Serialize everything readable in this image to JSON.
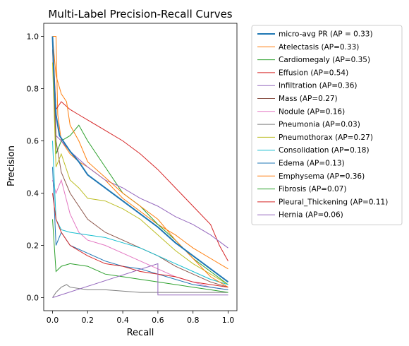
{
  "chart_data": {
    "type": "line",
    "title": "Multi-Label Precision-Recall Curves",
    "xlabel": "Recall",
    "ylabel": "Precision",
    "xlim": [
      -0.05,
      1.05
    ],
    "ylim": [
      -0.05,
      1.05
    ],
    "xticks": [
      0.0,
      0.2,
      0.4,
      0.6,
      0.8,
      1.0
    ],
    "xtick_labels": [
      "0.0",
      "0.2",
      "0.4",
      "0.6",
      "0.8",
      "1.0"
    ],
    "yticks": [
      0.0,
      0.2,
      0.4,
      0.6,
      0.8,
      1.0
    ],
    "ytick_labels": [
      "0.0",
      "0.2",
      "0.4",
      "0.6",
      "0.8",
      "1.0"
    ],
    "grid": false,
    "legend_placement": "outside-right",
    "series": [
      {
        "name": "micro-avg PR (AP = 0.33)",
        "color": "#1f77b4",
        "bold": true,
        "x": [
          0.0,
          0.01,
          0.02,
          0.04,
          0.06,
          0.1,
          0.15,
          0.2,
          0.3,
          0.4,
          0.5,
          0.6,
          0.7,
          0.8,
          0.9,
          1.0
        ],
        "y": [
          1.0,
          0.82,
          0.7,
          0.62,
          0.6,
          0.56,
          0.52,
          0.47,
          0.42,
          0.37,
          0.32,
          0.27,
          0.21,
          0.16,
          0.11,
          0.06
        ]
      },
      {
        "name": "Atelectasis (AP=0.33)",
        "color": "#ff7f0e",
        "x": [
          0.0,
          0.02,
          0.03,
          0.05,
          0.1,
          0.15,
          0.2,
          0.3,
          0.4,
          0.5,
          0.6,
          0.7,
          0.8,
          0.9,
          1.0
        ],
        "y": [
          1.0,
          1.0,
          0.7,
          0.6,
          0.55,
          0.52,
          0.5,
          0.45,
          0.38,
          0.33,
          0.28,
          0.24,
          0.19,
          0.15,
          0.11
        ]
      },
      {
        "name": "Cardiomegaly (AP=0.35)",
        "color": "#2ca02c",
        "x": [
          0.0,
          0.02,
          0.05,
          0.1,
          0.15,
          0.2,
          0.25,
          0.3,
          0.4,
          0.5,
          0.6,
          0.7,
          0.8,
          0.9,
          1.0
        ],
        "y": [
          1.0,
          0.55,
          0.6,
          0.62,
          0.66,
          0.6,
          0.55,
          0.5,
          0.4,
          0.35,
          0.28,
          0.22,
          0.15,
          0.1,
          0.05
        ]
      },
      {
        "name": "Effusion (AP=0.54)",
        "color": "#d62728",
        "x": [
          0.0,
          0.02,
          0.05,
          0.1,
          0.15,
          0.2,
          0.3,
          0.4,
          0.5,
          0.6,
          0.7,
          0.8,
          0.9,
          0.95,
          1.0
        ],
        "y": [
          1.0,
          0.72,
          0.75,
          0.72,
          0.7,
          0.68,
          0.64,
          0.6,
          0.55,
          0.49,
          0.42,
          0.35,
          0.28,
          0.2,
          0.14
        ]
      },
      {
        "name": "Infiltration (AP=0.36)",
        "color": "#9467bd",
        "x": [
          0.0,
          0.02,
          0.05,
          0.1,
          0.2,
          0.3,
          0.4,
          0.5,
          0.6,
          0.7,
          0.8,
          0.9,
          1.0
        ],
        "y": [
          1.0,
          0.62,
          0.6,
          0.56,
          0.5,
          0.45,
          0.42,
          0.38,
          0.35,
          0.31,
          0.28,
          0.24,
          0.19
        ]
      },
      {
        "name": "Mass (AP=0.27)",
        "color": "#8c564b",
        "x": [
          0.0,
          0.02,
          0.05,
          0.1,
          0.15,
          0.2,
          0.3,
          0.4,
          0.5,
          0.6,
          0.7,
          0.8,
          0.9,
          1.0
        ],
        "y": [
          0.95,
          0.6,
          0.48,
          0.4,
          0.35,
          0.3,
          0.25,
          0.22,
          0.19,
          0.16,
          0.12,
          0.09,
          0.06,
          0.04
        ]
      },
      {
        "name": "Nodule (AP=0.16)",
        "color": "#e377c2",
        "x": [
          0.0,
          0.02,
          0.05,
          0.1,
          0.15,
          0.2,
          0.3,
          0.4,
          0.5,
          0.6,
          0.7,
          0.8,
          0.9,
          1.0
        ],
        "y": [
          0.45,
          0.4,
          0.45,
          0.32,
          0.25,
          0.22,
          0.2,
          0.17,
          0.14,
          0.11,
          0.08,
          0.06,
          0.04,
          0.03
        ]
      },
      {
        "name": "Pneumonia (AP=0.03)",
        "color": "#7f7f7f",
        "x": [
          0.0,
          0.02,
          0.05,
          0.08,
          0.1,
          0.2,
          0.3,
          0.5,
          0.7,
          0.9,
          1.0
        ],
        "y": [
          0.0,
          0.02,
          0.04,
          0.05,
          0.04,
          0.03,
          0.03,
          0.02,
          0.02,
          0.02,
          0.02
        ]
      },
      {
        "name": "Pneumothorax (AP=0.27)",
        "color": "#bcbd22",
        "x": [
          0.0,
          0.02,
          0.05,
          0.1,
          0.15,
          0.2,
          0.3,
          0.4,
          0.5,
          0.6,
          0.7,
          0.8,
          0.9,
          1.0
        ],
        "y": [
          0.9,
          0.5,
          0.55,
          0.45,
          0.42,
          0.38,
          0.37,
          0.34,
          0.3,
          0.24,
          0.18,
          0.13,
          0.09,
          0.05
        ]
      },
      {
        "name": "Consolidation (AP=0.18)",
        "color": "#17becf",
        "x": [
          0.0,
          0.02,
          0.05,
          0.1,
          0.2,
          0.3,
          0.4,
          0.5,
          0.6,
          0.7,
          0.8,
          0.9,
          1.0
        ],
        "y": [
          0.6,
          0.3,
          0.26,
          0.25,
          0.24,
          0.23,
          0.21,
          0.19,
          0.16,
          0.13,
          0.1,
          0.07,
          0.05
        ]
      },
      {
        "name": "Edema (AP=0.13)",
        "color": "#1f77b4",
        "x": [
          0.0,
          0.02,
          0.05,
          0.1,
          0.2,
          0.3,
          0.4,
          0.5,
          0.6,
          0.7,
          0.8,
          0.9,
          1.0
        ],
        "y": [
          0.5,
          0.2,
          0.25,
          0.2,
          0.17,
          0.14,
          0.12,
          0.11,
          0.09,
          0.07,
          0.05,
          0.04,
          0.03
        ]
      },
      {
        "name": "Emphysema (AP=0.36)",
        "color": "#ff7f0e",
        "x": [
          0.0,
          0.02,
          0.05,
          0.08,
          0.1,
          0.15,
          0.2,
          0.3,
          0.4,
          0.5,
          0.6,
          0.7,
          0.8,
          0.9,
          1.0
        ],
        "y": [
          1.0,
          0.85,
          0.78,
          0.75,
          0.66,
          0.6,
          0.52,
          0.46,
          0.4,
          0.35,
          0.3,
          0.22,
          0.15,
          0.08,
          0.04
        ]
      },
      {
        "name": "Fibrosis (AP=0.07)",
        "color": "#2ca02c",
        "x": [
          0.0,
          0.02,
          0.05,
          0.1,
          0.2,
          0.3,
          0.4,
          0.5,
          0.6,
          0.7,
          0.8,
          0.9,
          1.0
        ],
        "y": [
          0.3,
          0.1,
          0.12,
          0.13,
          0.12,
          0.09,
          0.08,
          0.07,
          0.06,
          0.05,
          0.04,
          0.03,
          0.02
        ]
      },
      {
        "name": "Pleural_Thickening (AP=0.11)",
        "color": "#d62728",
        "x": [
          0.0,
          0.02,
          0.05,
          0.1,
          0.2,
          0.3,
          0.4,
          0.5,
          0.6,
          0.7,
          0.8,
          0.9,
          1.0
        ],
        "y": [
          0.4,
          0.3,
          0.25,
          0.2,
          0.16,
          0.13,
          0.12,
          0.1,
          0.09,
          0.08,
          0.06,
          0.05,
          0.04
        ]
      },
      {
        "name": "Hernia (AP=0.06)",
        "color": "#9467bd",
        "x": [
          0.0,
          0.6,
          0.6,
          1.0
        ],
        "y": [
          0.0,
          0.13,
          0.01,
          0.01
        ]
      }
    ]
  }
}
